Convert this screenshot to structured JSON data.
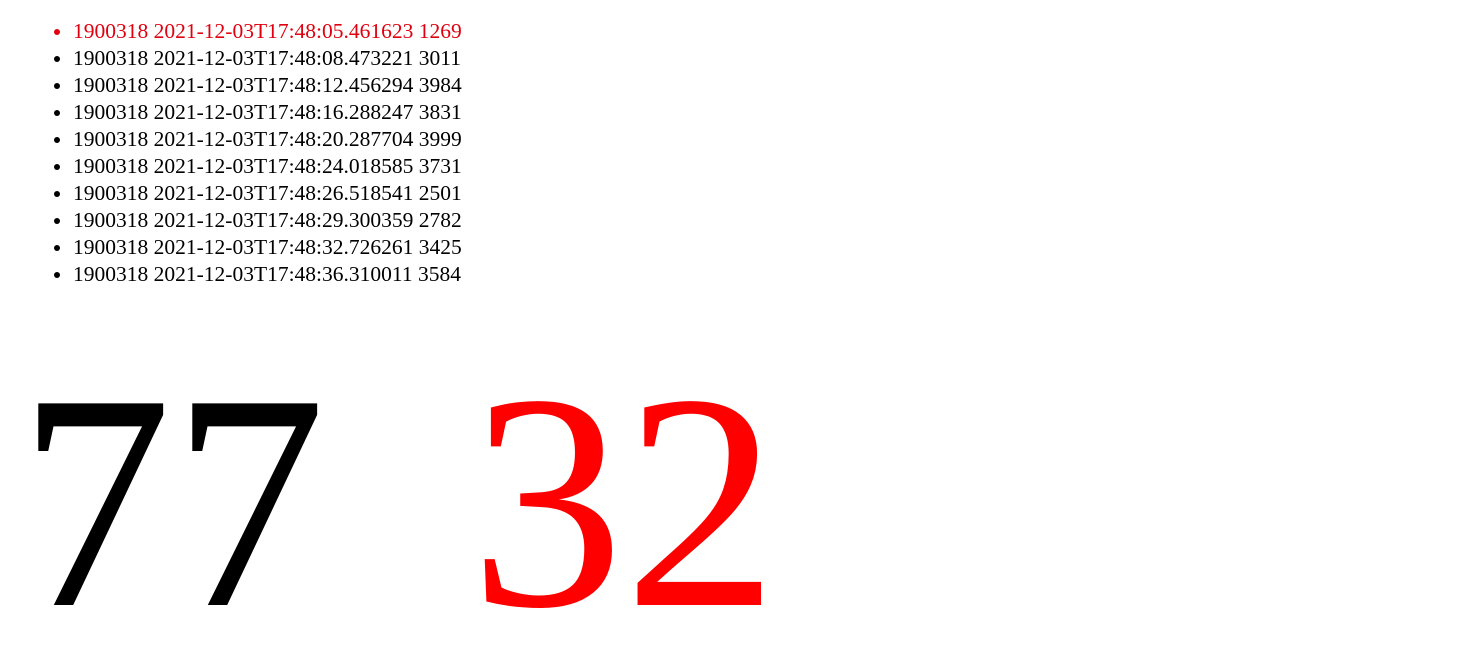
{
  "log": {
    "items": [
      {
        "text": "1900318 2021-12-03T17:48:05.461623 1269",
        "highlight": true
      },
      {
        "text": "1900318 2021-12-03T17:48:08.473221 3011",
        "highlight": false
      },
      {
        "text": "1900318 2021-12-03T17:48:12.456294 3984",
        "highlight": false
      },
      {
        "text": "1900318 2021-12-03T17:48:16.288247 3831",
        "highlight": false
      },
      {
        "text": "1900318 2021-12-03T17:48:20.287704 3999",
        "highlight": false
      },
      {
        "text": "1900318 2021-12-03T17:48:24.018585 3731",
        "highlight": false
      },
      {
        "text": "1900318 2021-12-03T17:48:26.518541 2501",
        "highlight": false
      },
      {
        "text": "1900318 2021-12-03T17:48:29.300359 2782",
        "highlight": false
      },
      {
        "text": "1900318 2021-12-03T17:48:32.726261 3425",
        "highlight": false
      },
      {
        "text": "1900318 2021-12-03T17:48:36.310011 3584",
        "highlight": false
      }
    ],
    "highlight_color": "#e0000f"
  },
  "counters": {
    "left_value": "77",
    "left_color": "#000000",
    "right_value": "32",
    "right_color": "#ff0000"
  }
}
